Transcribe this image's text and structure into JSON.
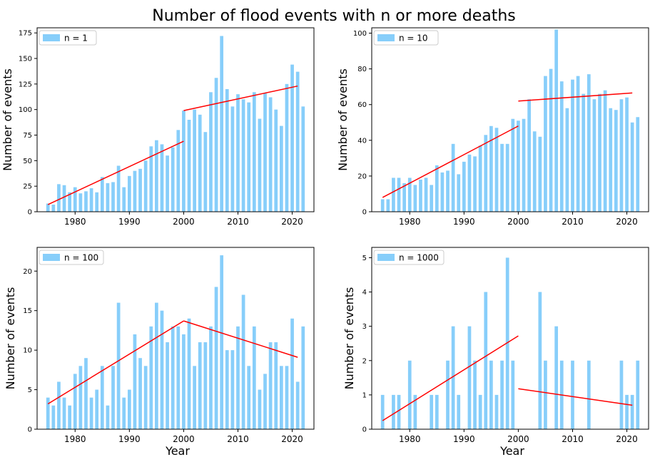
{
  "figure": {
    "title": "Number of flood events with n or more deaths",
    "colors": {
      "bar": "#87CEFA",
      "trend": "#FF0000",
      "axis": "#000000"
    }
  },
  "chart_data": [
    {
      "type": "bar",
      "legend": "n = 1",
      "legend_position": "top-left",
      "ylabel": "Number of events",
      "xlabel": "",
      "xlim": [
        1973,
        2024
      ],
      "ylim": [
        0,
        180
      ],
      "xticks": [
        1980,
        1990,
        2000,
        2010,
        2020
      ],
      "yticks": [
        0,
        25,
        50,
        75,
        100,
        125,
        150,
        175
      ],
      "x": [
        1975,
        1976,
        1977,
        1978,
        1979,
        1980,
        1981,
        1982,
        1983,
        1984,
        1985,
        1986,
        1987,
        1988,
        1989,
        1990,
        1991,
        1992,
        1993,
        1994,
        1995,
        1996,
        1997,
        1998,
        1999,
        2000,
        2001,
        2002,
        2003,
        2004,
        2005,
        2006,
        2007,
        2008,
        2009,
        2010,
        2011,
        2012,
        2013,
        2014,
        2015,
        2016,
        2017,
        2018,
        2019,
        2020,
        2021,
        2022
      ],
      "values": [
        8,
        7,
        27,
        26,
        19,
        24,
        18,
        20,
        23,
        19,
        34,
        28,
        29,
        45,
        24,
        35,
        40,
        42,
        50,
        64,
        70,
        66,
        55,
        63,
        80,
        99,
        90,
        100,
        95,
        78,
        117,
        131,
        172,
        120,
        103,
        115,
        110,
        107,
        117,
        91,
        116,
        112,
        100,
        84,
        125,
        144,
        137,
        103
      ],
      "trend_lines": [
        {
          "x": [
            1975,
            2000
          ],
          "y": [
            7,
            69
          ]
        },
        {
          "x": [
            2000,
            2021
          ],
          "y": [
            99,
            123
          ]
        }
      ]
    },
    {
      "type": "bar",
      "legend": "n = 10",
      "legend_position": "top-left",
      "ylabel": "Number of events",
      "xlabel": "",
      "xlim": [
        1973,
        2024
      ],
      "ylim": [
        0,
        103
      ],
      "xticks": [
        1980,
        1990,
        2000,
        2010,
        2020
      ],
      "yticks": [
        0,
        20,
        40,
        60,
        80,
        100
      ],
      "x": [
        1975,
        1976,
        1977,
        1978,
        1979,
        1980,
        1981,
        1982,
        1983,
        1984,
        1985,
        1986,
        1987,
        1988,
        1989,
        1990,
        1991,
        1992,
        1993,
        1994,
        1995,
        1996,
        1997,
        1998,
        1999,
        2000,
        2001,
        2002,
        2003,
        2004,
        2005,
        2006,
        2007,
        2008,
        2009,
        2010,
        2011,
        2012,
        2013,
        2014,
        2015,
        2016,
        2017,
        2018,
        2019,
        2020,
        2021,
        2022
      ],
      "values": [
        7,
        7,
        19,
        19,
        16,
        19,
        15,
        18,
        19,
        15,
        26,
        22,
        23,
        38,
        21,
        28,
        32,
        31,
        37,
        43,
        48,
        47,
        38,
        38,
        52,
        51,
        52,
        63,
        45,
        42,
        76,
        80,
        102,
        73,
        58,
        74,
        76,
        66,
        77,
        63,
        66,
        68,
        58,
        57,
        63,
        64,
        50,
        53
      ],
      "trend_lines": [
        {
          "x": [
            1975,
            2000
          ],
          "y": [
            8,
            48
          ]
        },
        {
          "x": [
            2000,
            2021
          ],
          "y": [
            62,
            66.5
          ]
        }
      ]
    },
    {
      "type": "bar",
      "legend": "n = 100",
      "legend_position": "top-left",
      "ylabel": "Number of events",
      "xlabel": "Year",
      "xlim": [
        1973,
        2024
      ],
      "ylim": [
        0,
        23
      ],
      "xticks": [
        1980,
        1990,
        2000,
        2010,
        2020
      ],
      "yticks": [
        0,
        5,
        10,
        15,
        20
      ],
      "x": [
        1975,
        1976,
        1977,
        1978,
        1979,
        1980,
        1981,
        1982,
        1983,
        1984,
        1985,
        1986,
        1987,
        1988,
        1989,
        1990,
        1991,
        1992,
        1993,
        1994,
        1995,
        1996,
        1997,
        1998,
        1999,
        2000,
        2001,
        2002,
        2003,
        2004,
        2005,
        2006,
        2007,
        2008,
        2009,
        2010,
        2011,
        2012,
        2013,
        2014,
        2015,
        2016,
        2017,
        2018,
        2019,
        2020,
        2021,
        2022
      ],
      "values": [
        4,
        3,
        6,
        4,
        3,
        7,
        8,
        9,
        4,
        5,
        8,
        3,
        8,
        16,
        4,
        5,
        12,
        9,
        8,
        13,
        16,
        15,
        11,
        13,
        13,
        12,
        14,
        8,
        11,
        11,
        13,
        18,
        22,
        10,
        10,
        13,
        17,
        8,
        13,
        5,
        7,
        11,
        11,
        8,
        8,
        14,
        6,
        13
      ],
      "trend_lines": [
        {
          "x": [
            1975,
            2000
          ],
          "y": [
            3.2,
            13.7
          ]
        },
        {
          "x": [
            2000,
            2021
          ],
          "y": [
            13.7,
            9.1
          ]
        }
      ]
    },
    {
      "type": "bar",
      "legend": "n = 1000",
      "legend_position": "top-left",
      "ylabel": "Number of events",
      "xlabel": "Year",
      "xlim": [
        1973,
        2024
      ],
      "ylim": [
        0,
        5.3
      ],
      "xticks": [
        1980,
        1990,
        2000,
        2010,
        2020
      ],
      "yticks": [
        0,
        1,
        2,
        3,
        4,
        5
      ],
      "x": [
        1975,
        1977,
        1978,
        1980,
        1981,
        1984,
        1985,
        1987,
        1988,
        1989,
        1991,
        1992,
        1993,
        1994,
        1995,
        1996,
        1997,
        1998,
        1999,
        2004,
        2005,
        2007,
        2008,
        2010,
        2013,
        2019,
        2020,
        2021,
        2022
      ],
      "values": [
        1,
        1,
        1,
        2,
        1,
        1,
        1,
        2,
        3,
        1,
        3,
        2,
        1,
        4,
        2,
        1,
        2,
        5,
        2,
        4,
        2,
        3,
        2,
        2,
        2,
        2,
        1,
        1,
        2
      ],
      "trend_lines": [
        {
          "x": [
            1975,
            2000
          ],
          "y": [
            0.25,
            2.72
          ]
        },
        {
          "x": [
            2000,
            2021
          ],
          "y": [
            1.18,
            0.7
          ]
        }
      ]
    }
  ]
}
